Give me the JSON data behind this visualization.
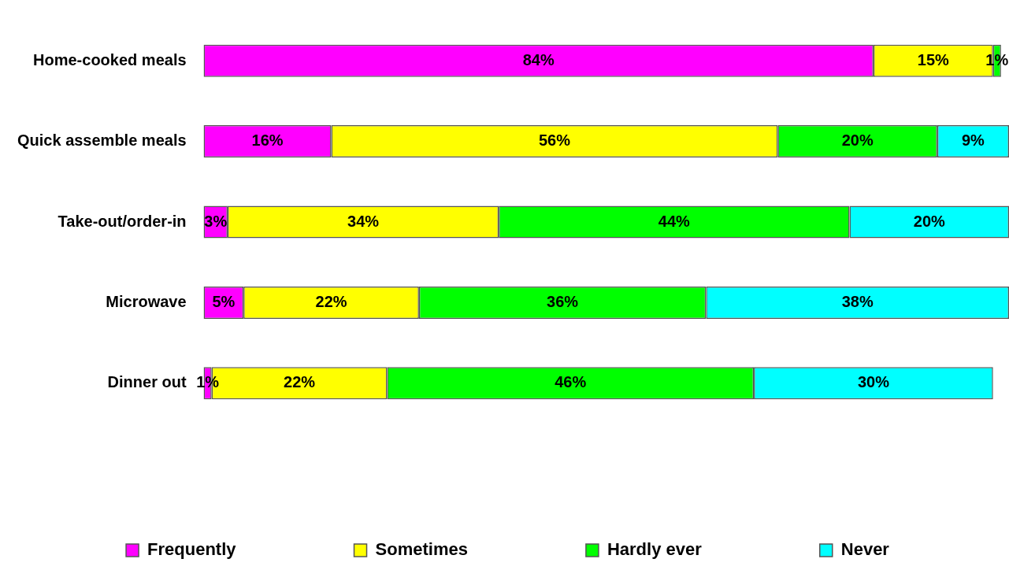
{
  "chart_data": {
    "type": "bar",
    "orientation": "horizontal",
    "stacked": true,
    "tick_labels": "y",
    "legend": "bottom",
    "xlim": [
      0,
      101
    ],
    "categories": [
      "Home-cooked meals",
      "Quick assemble meals",
      "Take-out/order-in",
      "Microwave",
      "Dinner out"
    ],
    "series": [
      {
        "name": "Frequently",
        "color": "#ff00ff",
        "values": [
          84,
          16,
          3,
          5,
          1
        ],
        "value_labels": [
          "84%",
          "16%",
          "3%",
          "5%",
          "1%"
        ]
      },
      {
        "name": "Sometimes",
        "color": "#ffff00",
        "values": [
          15,
          56,
          34,
          22,
          22
        ],
        "value_labels": [
          "15%",
          "56%",
          "34%",
          "22%",
          "22%"
        ]
      },
      {
        "name": "Hardly ever",
        "color": "#00ff00",
        "values": [
          1,
          20,
          44,
          36,
          46
        ],
        "value_labels": [
          "1%",
          "20%",
          "44%",
          "36%",
          "46%"
        ]
      },
      {
        "name": "Never",
        "color": "#00ffff",
        "values": [
          null,
          9,
          20,
          38,
          30
        ],
        "value_labels": [
          null,
          "9%",
          "20%",
          "38%",
          "30%"
        ]
      }
    ]
  }
}
